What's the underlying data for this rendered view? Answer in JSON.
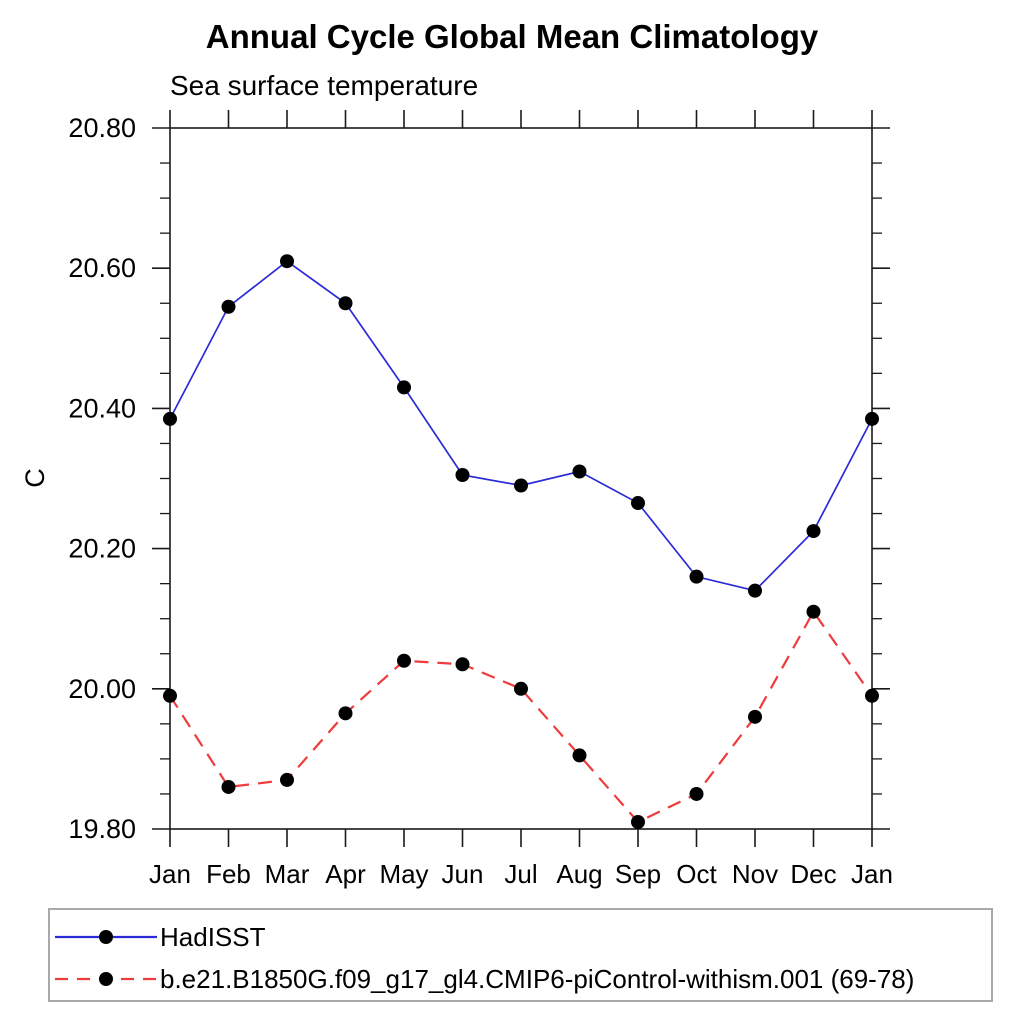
{
  "page": {
    "background_color": "#ffffff"
  },
  "chart_data": {
    "type": "line",
    "title": "Annual Cycle Global Mean Climatology",
    "subtitle": "Sea surface temperature",
    "xlabel": "",
    "ylabel": "C",
    "x_categories": [
      "Jan",
      "Feb",
      "Mar",
      "Apr",
      "May",
      "Jun",
      "Jul",
      "Aug",
      "Sep",
      "Oct",
      "Nov",
      "Dec",
      "Jan"
    ],
    "ylim": [
      19.8,
      20.8
    ],
    "ytick_values": [
      19.8,
      20.0,
      20.2,
      20.4,
      20.6,
      20.8
    ],
    "ytick_labels": [
      "19.80",
      "20.00",
      "20.20",
      "20.40",
      "20.60",
      "20.80"
    ],
    "ytick_minor_step": 0.05,
    "grid": false,
    "frame": true,
    "axis_color": "#1a1a1a",
    "text_color": "#000000",
    "marker_color": "#000000",
    "legend": {
      "position": "bottom",
      "border": true
    },
    "series": [
      {
        "name": "HadISST",
        "color": "#2b2bd8",
        "line_style": "solid",
        "marker": "circle",
        "values": [
          20.385,
          20.545,
          20.61,
          20.55,
          20.43,
          20.305,
          20.29,
          20.31,
          20.265,
          20.16,
          20.14,
          20.225,
          20.385
        ]
      },
      {
        "name": "b.e21.B1850G.f09_g17_gl4.CMIP6-piControl-withism.001 (69-78)",
        "color": "#ef3b3b",
        "line_style": "dashed",
        "marker": "circle",
        "values": [
          19.99,
          19.86,
          19.87,
          19.965,
          20.04,
          20.035,
          20.0,
          19.905,
          19.81,
          19.85,
          19.96,
          20.11,
          19.99
        ]
      }
    ]
  }
}
